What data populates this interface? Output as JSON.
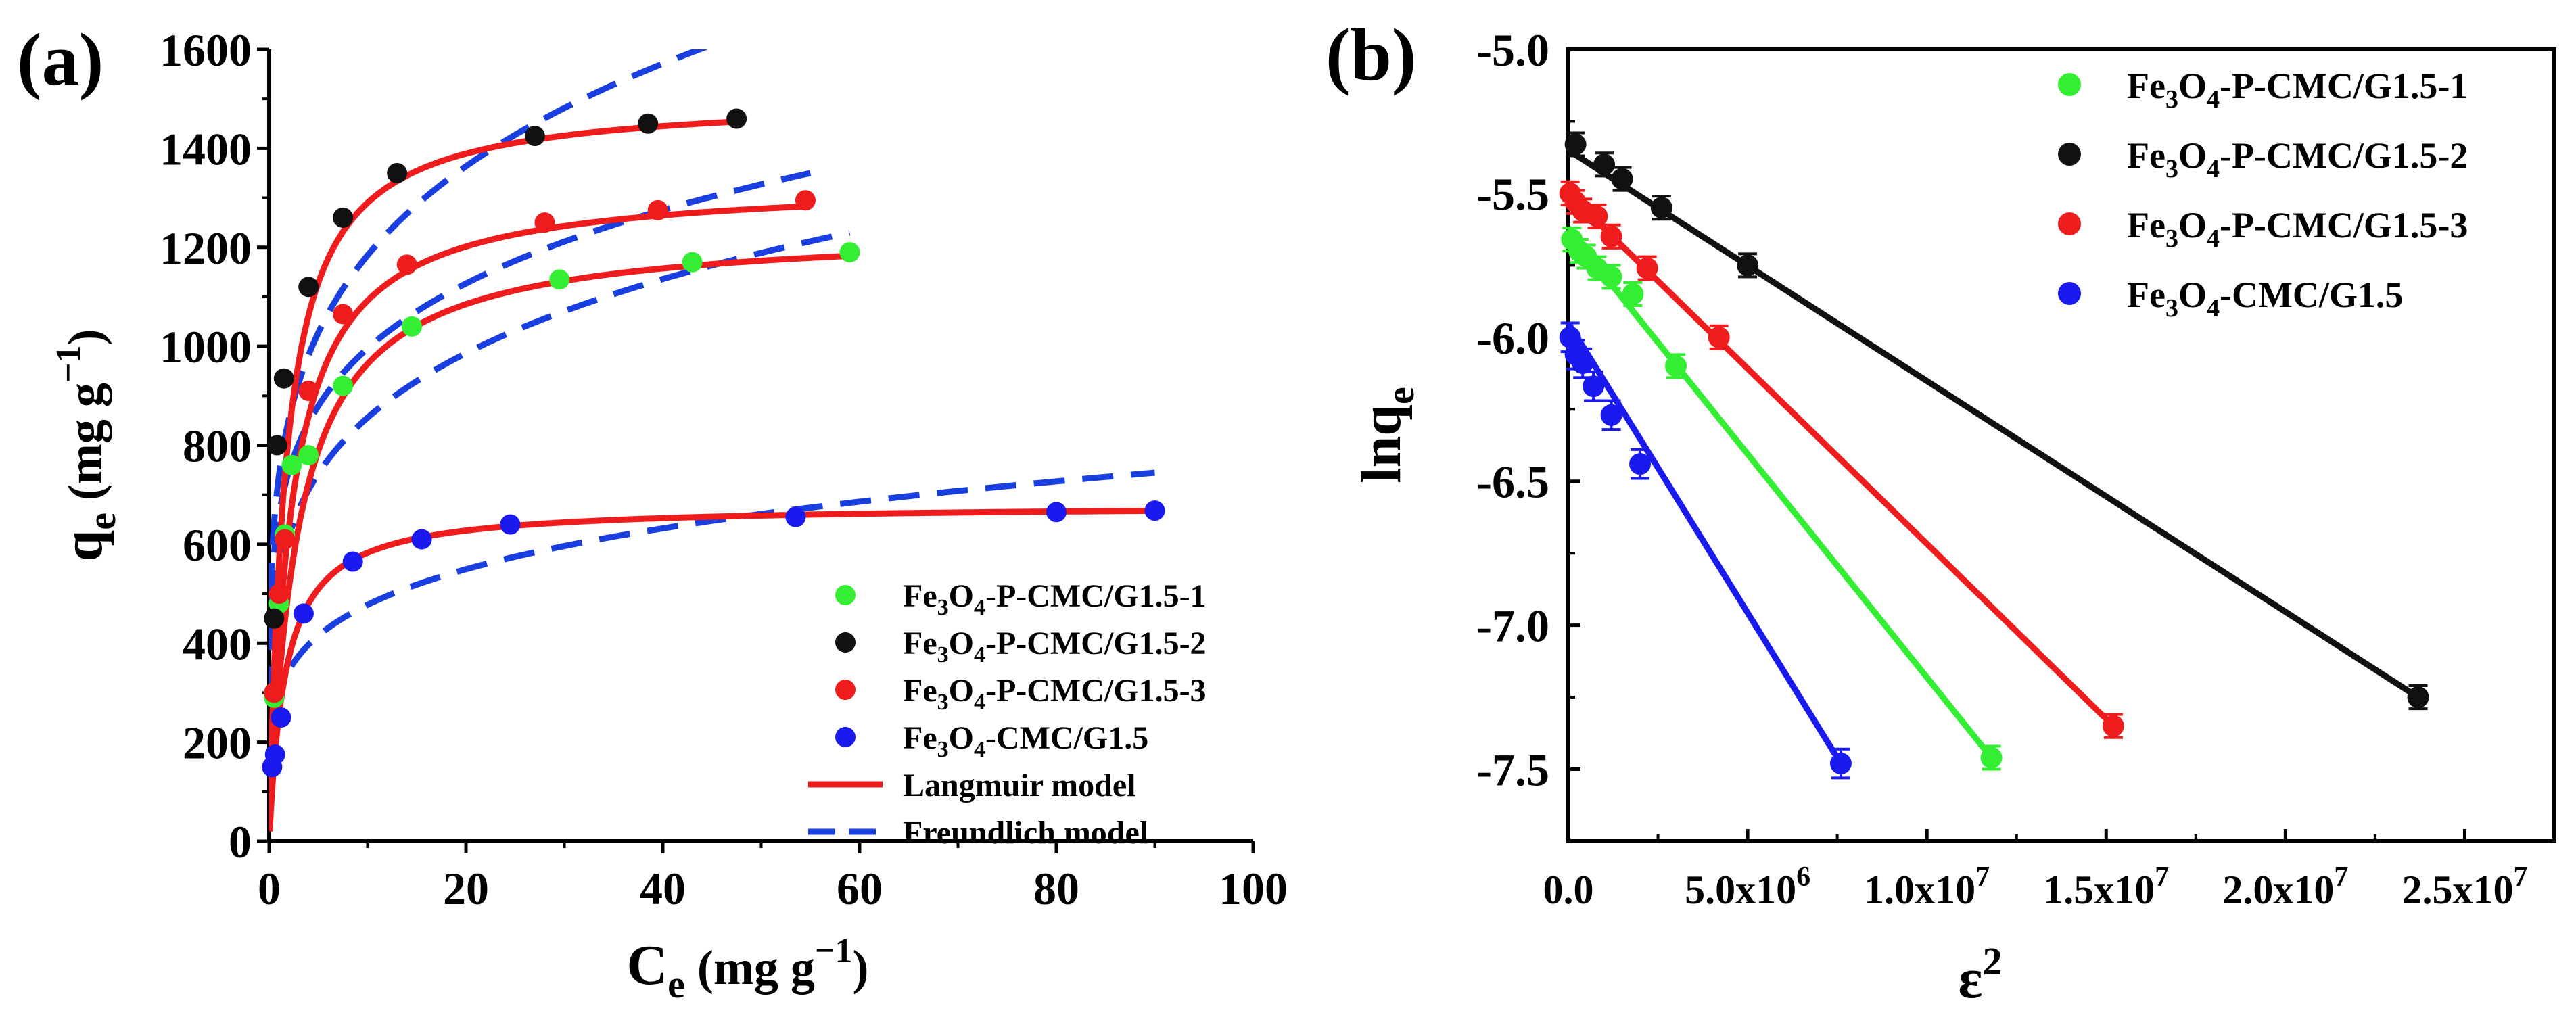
{
  "chart_data": [
    {
      "type": "scatter",
      "panel_label": "(a)",
      "xlabel": "C",
      "xlabel_sub": "e",
      "xlabel_units": " (mg g",
      "xlabel_units_sup": "−1",
      "xlabel_units_close": ")",
      "ylabel": "q",
      "ylabel_sub": "e",
      "ylabel_units": " (mg g",
      "ylabel_units_sup": "−1",
      "ylabel_units_close": ")",
      "xlim": [
        0,
        100
      ],
      "ylim": [
        0,
        1600
      ],
      "xticks": [
        0,
        20,
        40,
        60,
        80,
        100
      ],
      "yticks": [
        0,
        200,
        400,
        600,
        800,
        1000,
        1200,
        1400,
        1600
      ],
      "legend_position": "bottom-right",
      "legend": [
        {
          "parts": [
            "Fe",
            "3",
            "O",
            "4",
            "-P-CMC/G1.5-1"
          ],
          "color": "#33ee33",
          "kind": "marker"
        },
        {
          "parts": [
            "Fe",
            "3",
            "O",
            "4",
            "-P-CMC/G1.5-2"
          ],
          "color": "#111111",
          "kind": "marker"
        },
        {
          "parts": [
            "Fe",
            "3",
            "O",
            "4",
            "-P-CMC/G1.5-3"
          ],
          "color": "#ee1c1c",
          "kind": "marker"
        },
        {
          "parts": [
            "Fe",
            "3",
            "O",
            "4",
            "-CMC/G1.5"
          ],
          "color": "#1a1aee",
          "kind": "marker"
        },
        {
          "text": "Langmuir model",
          "color": "#ee1c1c",
          "kind": "solid"
        },
        {
          "text": "Freundlich model",
          "color": "#1a3fe0",
          "kind": "dashed"
        }
      ],
      "series": [
        {
          "name": "Fe3O4-P-CMC/G1.5-1",
          "color": "#33ee33",
          "x": [
            0.5,
            1.0,
            1.6,
            2.3,
            4.0,
            7.5,
            14.5,
            29.5,
            43.0,
            59.0
          ],
          "y": [
            290,
            480,
            620,
            760,
            780,
            920,
            1040,
            1135,
            1170,
            1190
          ],
          "langmuir": {
            "qm": 1240,
            "KL": 0.35,
            "xmax": 59
          },
          "freundlich": {
            "KF": 535,
            "n": 4.9,
            "xmax": 59
          }
        },
        {
          "name": "Fe3O4-P-CMC/G1.5-2",
          "color": "#111111",
          "x": [
            0.5,
            0.8,
            1.5,
            4.0,
            7.5,
            13.0,
            27.0,
            38.5,
            47.5
          ],
          "y": [
            450,
            800,
            935,
            1120,
            1260,
            1350,
            1425,
            1450,
            1460
          ],
          "langmuir": {
            "qm": 1505,
            "KL": 0.6,
            "xmax": 48
          },
          "freundlich": {
            "KF": 740,
            "n": 4.9,
            "xmax": 48
          }
        },
        {
          "name": "Fe3O4-P-CMC/G1.5-3",
          "color": "#ee1c1c",
          "x": [
            0.5,
            1.0,
            1.6,
            4.0,
            7.5,
            14.0,
            28.0,
            39.5,
            54.5
          ],
          "y": [
            300,
            500,
            610,
            910,
            1065,
            1165,
            1250,
            1275,
            1295
          ],
          "langmuir": {
            "qm": 1335,
            "KL": 0.45,
            "xmax": 55
          },
          "freundlich": {
            "KF": 660,
            "n": 5.6,
            "xmax": 55
          }
        },
        {
          "name": "Fe3O4-CMC/G1.5",
          "color": "#1a1aee",
          "x": [
            0.3,
            0.6,
            1.2,
            3.5,
            8.5,
            15.5,
            24.5,
            53.5,
            80.0,
            90.0
          ],
          "y": [
            150,
            175,
            250,
            460,
            565,
            610,
            640,
            655,
            665,
            668
          ],
          "langmuir": {
            "qm": 680,
            "KL": 0.6,
            "xmax": 90
          },
          "freundlich": {
            "KF": 300,
            "n": 4.95,
            "xmax": 90
          }
        }
      ]
    },
    {
      "type": "scatter",
      "panel_label": "(b)",
      "xlabel": "ε",
      "xlabel_sup": "2",
      "ylabel": "lnq",
      "ylabel_sub": "e",
      "xlim": [
        0,
        27500000.0
      ],
      "ylim": [
        -7.75,
        -5.0
      ],
      "xticks": [
        0,
        5000000,
        10000000,
        15000000,
        20000000,
        25000000
      ],
      "xtick_labels": [
        {
          "text": "0.0",
          "exp": ""
        },
        {
          "text": "5.0x10",
          "exp": "6"
        },
        {
          "text": "1.0x10",
          "exp": "7"
        },
        {
          "text": "1.5x10",
          "exp": "7"
        },
        {
          "text": "2.0x10",
          "exp": "7"
        },
        {
          "text": "2.5x10",
          "exp": "7"
        }
      ],
      "yticks": [
        -7.5,
        -7.0,
        -6.5,
        -6.0,
        -5.5,
        -5.0
      ],
      "ytick_labels": [
        "-7.5",
        "-7.0",
        "-6.5",
        "-6.0",
        "-5.5",
        "-5.0"
      ],
      "legend_position": "top-right",
      "legend": [
        {
          "parts": [
            "Fe",
            "3",
            "O",
            "4",
            "-P-CMC/G1.5-1"
          ],
          "color": "#33ee33"
        },
        {
          "parts": [
            "Fe",
            "3",
            "O",
            "4",
            "-P-CMC/G1.5-2"
          ],
          "color": "#111111"
        },
        {
          "parts": [
            "Fe",
            "3",
            "O",
            "4",
            "-P-CMC/G1.5-3"
          ],
          "color": "#ee1c1c"
        },
        {
          "parts": [
            "Fe",
            "3",
            "O",
            "4",
            "-CMC/G1.5"
          ],
          "color": "#1a1aee"
        }
      ],
      "series": [
        {
          "name": "Fe3O4-P-CMC/G1.5-1",
          "color": "#33ee33",
          "x": [
            100000,
            300000,
            500000,
            800000,
            1200000,
            1800000,
            3000000,
            11800000
          ],
          "y": [
            -5.66,
            -5.7,
            -5.72,
            -5.76,
            -5.79,
            -5.85,
            -6.1,
            -7.46
          ],
          "err": 0.04,
          "line": {
            "x0": 0,
            "y0": -5.63,
            "x1": 11800000,
            "y1": -7.46
          }
        },
        {
          "name": "Fe3O4-P-CMC/G1.5-2",
          "color": "#111111",
          "x": [
            200000,
            1000000,
            1500000,
            2600000,
            5000000,
            23700000
          ],
          "y": [
            -5.33,
            -5.4,
            -5.45,
            -5.55,
            -5.75,
            -7.25
          ],
          "err": 0.04,
          "line": {
            "x0": 0,
            "y0": -5.35,
            "x1": 23700000,
            "y1": -7.25
          }
        },
        {
          "name": "Fe3O4-P-CMC/G1.5-3",
          "color": "#ee1c1c",
          "x": [
            50000,
            200000,
            400000,
            800000,
            1200000,
            2200000,
            4200000,
            15200000
          ],
          "y": [
            -5.5,
            -5.53,
            -5.56,
            -5.58,
            -5.65,
            -5.76,
            -6.0,
            -7.35
          ],
          "err": 0.04,
          "line": {
            "x0": 0,
            "y0": -5.5,
            "x1": 15200000,
            "y1": -7.35
          }
        },
        {
          "name": "Fe3O4-CMC/G1.5",
          "color": "#1a1aee",
          "x": [
            50000,
            200000,
            400000,
            700000,
            1200000,
            2000000,
            7600000
          ],
          "y": [
            -6.0,
            -6.06,
            -6.09,
            -6.17,
            -6.27,
            -6.44,
            -7.48
          ],
          "err": 0.05,
          "line": {
            "x0": 0,
            "y0": -5.95,
            "x1": 7600000,
            "y1": -7.48
          }
        }
      ]
    }
  ]
}
